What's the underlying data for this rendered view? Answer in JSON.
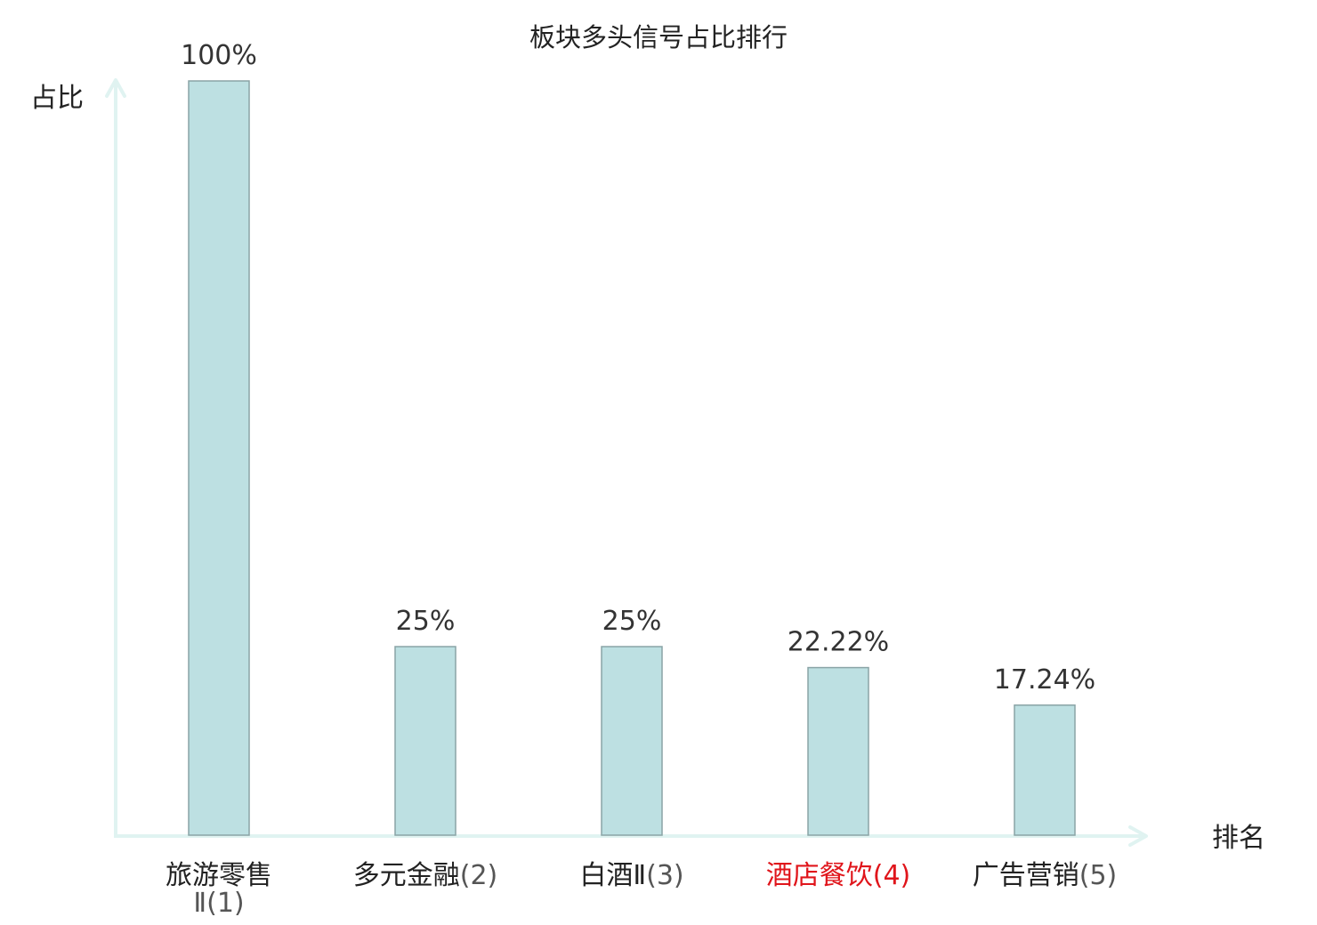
{
  "chart_data": {
    "type": "bar",
    "title": "板块多头信号占比排行",
    "ylabel": "占比",
    "xlabel": "排名",
    "ylim": [
      0,
      100
    ],
    "grid": false,
    "categories": [
      {
        "name": "旅游零售",
        "name_line2": "Ⅱ",
        "rank": "(1)",
        "highlight": false
      },
      {
        "name": "多元金融",
        "name_line2": "",
        "rank": "(2)",
        "highlight": false
      },
      {
        "name": "白酒Ⅱ",
        "name_line2": "",
        "rank": "(3)",
        "highlight": false
      },
      {
        "name": "酒店餐饮",
        "name_line2": "",
        "rank": "(4)",
        "highlight": true
      },
      {
        "name": "广告营销",
        "name_line2": "",
        "rank": "(5)",
        "highlight": false
      }
    ],
    "values": [
      100,
      25,
      25,
      22.22,
      17.24
    ],
    "value_labels": [
      "100%",
      "25%",
      "25%",
      "22.22%",
      "17.24%"
    ],
    "colors": {
      "bar_fill": "#bde0e2",
      "bar_stroke": "#8aa4a6",
      "axis": "#e0f3f1",
      "text": "#222222",
      "value_text": "#333333",
      "rank_text": "#555555",
      "highlight": "#e0151b"
    }
  }
}
